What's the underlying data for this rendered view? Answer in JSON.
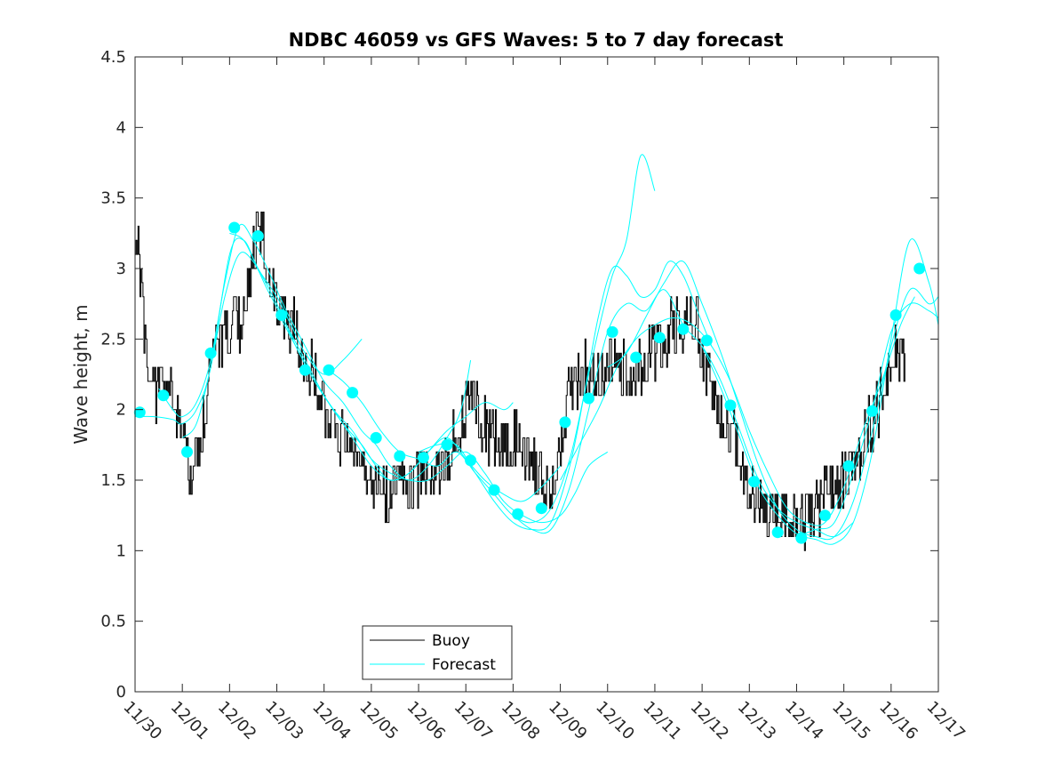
{
  "chart_data": {
    "type": "line",
    "title": "NDBC 46059 vs GFS Waves: 5 to 7 day forecast",
    "xlabel": "",
    "ylabel": "Wave height, m",
    "xlim": [
      0,
      17
    ],
    "ylim": [
      0,
      4.5
    ],
    "grid": false,
    "x_tick_values": [
      0,
      1,
      2,
      3,
      4,
      5,
      6,
      7,
      8,
      9,
      10,
      11,
      12,
      13,
      14,
      15,
      16,
      17
    ],
    "x_tick_labels": [
      "11/30",
      "12/01",
      "12/02",
      "12/03",
      "12/04",
      "12/05",
      "12/06",
      "12/07",
      "12/08",
      "12/09",
      "12/10",
      "12/11",
      "12/12",
      "12/13",
      "12/14",
      "12/15",
      "12/16",
      "12/17"
    ],
    "y_tick_values": [
      0,
      0.5,
      1,
      1.5,
      2,
      2.5,
      3,
      3.5,
      4,
      4.5
    ],
    "y_tick_labels": [
      "0",
      "0.5",
      "1",
      "1.5",
      "2",
      "2.5",
      "3",
      "3.5",
      "4",
      "4.5"
    ],
    "legend": {
      "placement": "bottom-center",
      "entries": [
        "Buoy",
        "Forecast"
      ]
    },
    "colors": {
      "buoy": "#000000",
      "forecast": "#00ffff",
      "axes": "#262626"
    },
    "buoy_trend": {
      "x": [
        0,
        0.1,
        0.2,
        0.3,
        0.5,
        0.7,
        0.9,
        1.0,
        1.15,
        1.3,
        1.5,
        1.7,
        1.9,
        2.1,
        2.3,
        2.5,
        2.65,
        2.8,
        3.0,
        3.3,
        3.6,
        3.9,
        4.2,
        4.5,
        4.8,
        5.0,
        5.2,
        5.5,
        5.8,
        6.0,
        6.3,
        6.6,
        6.9,
        7.1,
        7.3,
        7.5,
        7.8,
        8.1,
        8.4,
        8.7,
        8.9,
        9.1,
        9.3,
        9.6,
        9.9,
        10.2,
        10.5,
        10.8,
        11.1,
        11.4,
        11.7,
        11.9,
        12.1,
        12.4,
        12.7,
        12.9,
        13.1,
        13.3,
        13.6,
        13.9,
        14.2,
        14.5,
        14.8,
        15.0,
        15.3,
        15.6,
        15.9,
        16.1,
        16.3
      ],
      "y": [
        3.2,
        3.0,
        2.5,
        2.2,
        2.1,
        2.3,
        2.0,
        1.75,
        1.55,
        1.65,
        2.1,
        2.5,
        2.5,
        2.7,
        2.6,
        3.1,
        3.3,
        3.0,
        2.8,
        2.6,
        2.35,
        2.15,
        1.85,
        1.75,
        1.65,
        1.55,
        1.45,
        1.45,
        1.45,
        1.5,
        1.55,
        1.65,
        1.9,
        2.05,
        1.95,
        1.8,
        1.75,
        1.8,
        1.65,
        1.45,
        1.5,
        2.0,
        2.2,
        2.3,
        2.25,
        2.3,
        2.25,
        2.35,
        2.45,
        2.6,
        2.65,
        2.6,
        2.2,
        1.95,
        1.75,
        1.55,
        1.35,
        1.3,
        1.25,
        1.2,
        1.25,
        1.35,
        1.45,
        1.5,
        1.7,
        1.9,
        2.2,
        2.5,
        2.3
      ]
    },
    "forecast_markers": {
      "x": [
        0.1,
        0.6,
        1.1,
        1.6,
        2.1,
        2.6,
        3.1,
        3.6,
        4.1,
        4.6,
        5.1,
        5.6,
        6.1,
        6.6,
        7.1,
        7.6,
        8.1,
        8.6,
        9.1,
        9.6,
        10.1,
        10.6,
        11.1,
        11.6,
        12.1,
        12.6,
        13.1,
        13.6,
        14.1,
        14.6,
        15.1,
        15.6,
        16.1,
        16.6
      ],
      "y": [
        1.98,
        2.1,
        1.7,
        2.4,
        3.29,
        3.23,
        2.67,
        2.28,
        2.28,
        2.12,
        1.8,
        1.67,
        1.66,
        1.75,
        1.64,
        1.43,
        1.26,
        1.3,
        1.91,
        2.08,
        2.55,
        2.37,
        2.51,
        2.57,
        2.49,
        2.03,
        1.49,
        1.13,
        1.09,
        1.25,
        1.6,
        1.99,
        2.67,
        3.0
      ]
    },
    "forecast_runs": [
      {
        "x": [
          0.0,
          0.4,
          0.8,
          1.0,
          1.3,
          1.6,
          2.0,
          2.3,
          2.6,
          3.0,
          3.3,
          3.6,
          4.0,
          4.4,
          4.8
        ],
        "y": [
          1.95,
          1.95,
          1.93,
          1.9,
          2.0,
          2.3,
          3.1,
          3.2,
          3.0,
          2.8,
          2.6,
          2.4,
          2.25,
          2.35,
          2.5
        ]
      },
      {
        "x": [
          0.5,
          0.8,
          1.0,
          1.3,
          1.6,
          1.9,
          2.2,
          2.5,
          2.8,
          3.2,
          3.6,
          4.0,
          4.4,
          4.8,
          5.1,
          5.4,
          5.8,
          6.2,
          6.6,
          6.9,
          7.1
        ],
        "y": [
          2.15,
          2.0,
          1.95,
          2.05,
          2.35,
          2.9,
          3.3,
          3.2,
          3.0,
          2.7,
          2.45,
          2.2,
          2.05,
          1.85,
          1.75,
          1.6,
          1.5,
          1.6,
          1.8,
          2.0,
          2.35
        ]
      },
      {
        "x": [
          1.0,
          1.3,
          1.6,
          1.9,
          2.2,
          2.5,
          2.8,
          3.2,
          3.6,
          4.0,
          4.4,
          4.8,
          5.1,
          5.4,
          5.8,
          6.2,
          6.6,
          7.0,
          7.4,
          7.8,
          8.0
        ],
        "y": [
          1.8,
          1.9,
          2.3,
          2.8,
          3.1,
          3.05,
          2.85,
          2.6,
          2.35,
          2.1,
          1.9,
          1.75,
          1.6,
          1.5,
          1.55,
          1.7,
          1.85,
          1.95,
          2.05,
          2.0,
          2.05
        ]
      },
      {
        "x": [
          2.0,
          2.3,
          2.6,
          3.0,
          3.4,
          3.8,
          4.2,
          4.6,
          5.0,
          5.4,
          5.8,
          6.2,
          6.6,
          7.0,
          7.4,
          7.8,
          8.2,
          8.6,
          9.0
        ],
        "y": [
          3.25,
          3.2,
          3.0,
          2.75,
          2.45,
          2.2,
          2.0,
          1.8,
          1.6,
          1.5,
          1.55,
          1.7,
          1.8,
          1.65,
          1.5,
          1.4,
          1.35,
          1.45,
          1.6
        ]
      },
      {
        "x": [
          3.0,
          3.4,
          3.8,
          4.2,
          4.6,
          5.0,
          5.4,
          5.8,
          6.2,
          6.6,
          7.0,
          7.4,
          7.8,
          8.2,
          8.6,
          9.0,
          9.3,
          9.6,
          10.0
        ],
        "y": [
          2.7,
          2.45,
          2.2,
          2.0,
          1.85,
          1.65,
          1.55,
          1.5,
          1.5,
          1.6,
          1.7,
          1.55,
          1.35,
          1.25,
          1.2,
          1.25,
          1.4,
          1.6,
          1.7
        ]
      },
      {
        "x": [
          4.0,
          4.4,
          4.8,
          5.2,
          5.6,
          6.0,
          6.4,
          6.8,
          7.2,
          7.6,
          8.0,
          8.4,
          8.8,
          9.2,
          9.5,
          9.8,
          10.1,
          10.4,
          10.7,
          11.0
        ],
        "y": [
          2.3,
          2.2,
          2.05,
          1.85,
          1.7,
          1.65,
          1.6,
          1.7,
          1.55,
          1.4,
          1.25,
          1.2,
          1.3,
          1.65,
          2.1,
          2.55,
          2.95,
          3.2,
          3.8,
          3.55
        ]
      },
      {
        "x": [
          6.0,
          6.4,
          6.8,
          7.2,
          7.6,
          8.0,
          8.4,
          8.8,
          9.2,
          9.5,
          9.8,
          10.1,
          10.4,
          10.7,
          11.0,
          11.3,
          11.6,
          11.9,
          12.2
        ],
        "y": [
          1.7,
          1.75,
          1.75,
          1.55,
          1.35,
          1.2,
          1.15,
          1.2,
          1.6,
          2.1,
          2.65,
          3.0,
          2.95,
          2.8,
          2.85,
          3.05,
          2.95,
          2.7,
          2.45
        ]
      },
      {
        "x": [
          8.0,
          8.4,
          8.8,
          9.2,
          9.6,
          10.0,
          10.4,
          10.8,
          11.2,
          11.6,
          12.0,
          12.4,
          12.8,
          13.2,
          13.6,
          14.0,
          14.4,
          14.8,
          15.2
        ],
        "y": [
          1.25,
          1.15,
          1.15,
          1.45,
          2.0,
          2.55,
          2.75,
          2.7,
          2.85,
          2.6,
          2.45,
          2.2,
          1.85,
          1.5,
          1.3,
          1.2,
          1.15,
          1.1,
          1.2
        ]
      },
      {
        "x": [
          9.0,
          9.4,
          9.8,
          10.2,
          10.6,
          11.0,
          11.4,
          11.8,
          12.2,
          12.6,
          13.0,
          13.4,
          13.8,
          14.2,
          14.6,
          15.0,
          15.4,
          15.8,
          16.2,
          16.5
        ],
        "y": [
          1.5,
          1.75,
          2.0,
          2.3,
          2.5,
          2.6,
          2.65,
          2.6,
          2.45,
          2.2,
          1.85,
          1.55,
          1.3,
          1.2,
          1.2,
          1.45,
          1.85,
          2.2,
          2.6,
          2.8
        ]
      },
      {
        "x": [
          10.0,
          10.4,
          10.8,
          11.2,
          11.6,
          12.0,
          12.4,
          12.8,
          13.2,
          13.6,
          14.0,
          14.4,
          14.8,
          15.2,
          15.6,
          16.0,
          16.4,
          16.8,
          17.0
        ],
        "y": [
          2.3,
          2.4,
          2.65,
          2.9,
          3.05,
          2.75,
          2.4,
          2.0,
          1.6,
          1.3,
          1.15,
          1.1,
          1.1,
          1.35,
          1.85,
          2.45,
          2.85,
          2.75,
          2.8
        ]
      },
      {
        "x": [
          12.0,
          12.4,
          12.8,
          13.2,
          13.6,
          14.0,
          14.4,
          14.8,
          15.2,
          15.6,
          16.0,
          16.4,
          16.8,
          17.0
        ],
        "y": [
          2.45,
          2.15,
          1.8,
          1.45,
          1.25,
          1.12,
          1.08,
          1.05,
          1.2,
          1.7,
          2.5,
          3.2,
          2.9,
          2.6
        ]
      },
      {
        "x": [
          14.0,
          14.4,
          14.8,
          15.2,
          15.6,
          16.0,
          16.4,
          16.8,
          17.0
        ],
        "y": [
          1.1,
          1.15,
          1.2,
          1.55,
          2.0,
          2.55,
          2.75,
          2.7,
          2.65
        ]
      }
    ]
  }
}
